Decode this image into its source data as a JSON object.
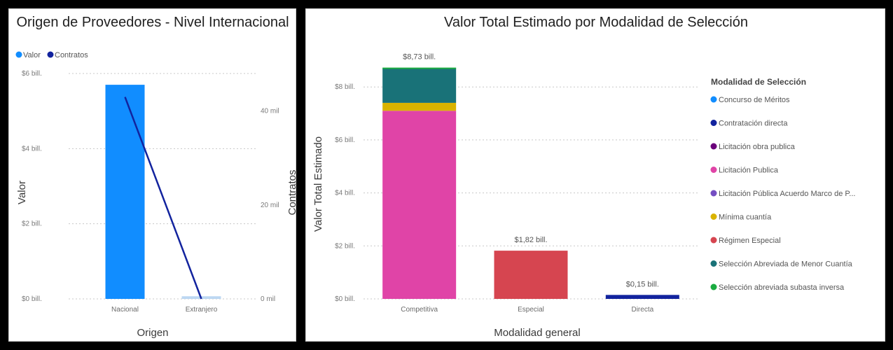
{
  "chart_data": [
    {
      "type": "bar",
      "title": "Origen de Proveedores - Nivel Internacional",
      "xlabel": "Origen",
      "ylabel": "Valor",
      "y2label": "Contratos",
      "categories": [
        "Nacional",
        "Extranjero"
      ],
      "legend": {
        "placement": "top-left",
        "items": [
          {
            "name": "Valor",
            "color": "#118dff"
          },
          {
            "name": "Contratos",
            "color": "#12239e"
          }
        ]
      },
      "series": [
        {
          "name": "Valor",
          "kind": "bar",
          "axis": "left",
          "values": [
            5.7,
            0.07
          ],
          "colors": [
            "#118dff",
            "#bcd7f2"
          ]
        },
        {
          "name": "Contratos",
          "kind": "line",
          "axis": "right",
          "values": [
            43000,
            0
          ],
          "color": "#12239e"
        }
      ],
      "ylim": [
        0,
        6
      ],
      "yticks": [
        0,
        2,
        4,
        6
      ],
      "ytick_labels": [
        "$0 bill.",
        "$2 bill.",
        "$4 bill.",
        "$6 bill."
      ],
      "y2lim": [
        0,
        48000
      ],
      "y2ticks": [
        0,
        20000,
        40000
      ],
      "y2tick_labels": [
        "0 mil",
        "20 mil",
        "40 mil"
      ],
      "grid": true
    },
    {
      "type": "bar",
      "stacked": true,
      "title": "Valor Total Estimado por Modalidad de Selección",
      "xlabel": "Modalidad general",
      "ylabel": "Valor Total Estimado",
      "categories": [
        "Competitiva",
        "Especial",
        "Directa"
      ],
      "totals": [
        8.73,
        1.82,
        0.15
      ],
      "total_labels": [
        "$8,73 bill.",
        "$1,82 bill.",
        "$0,15 bill."
      ],
      "ylim": [
        0,
        9.3
      ],
      "yticks": [
        0,
        2,
        4,
        6,
        8
      ],
      "ytick_labels": [
        "$0 bill.",
        "$2 bill.",
        "$4 bill.",
        "$6 bill.",
        "$8 bill."
      ],
      "grid": true,
      "legend": {
        "title": "Modalidad de Selección",
        "placement": "right"
      },
      "series": [
        {
          "name": "Concurso de Méritos",
          "color": "#118dff",
          "values": [
            0,
            0,
            0
          ]
        },
        {
          "name": "Contratación directa",
          "color": "#12239e",
          "values": [
            0,
            0,
            0.15
          ]
        },
        {
          "name": "Licitación obra publica",
          "color": "#6b007b",
          "values": [
            0,
            0,
            0
          ]
        },
        {
          "name": "Licitación Publica",
          "color": "#e044a7",
          "values": [
            7.1,
            0,
            0
          ]
        },
        {
          "name": "Licitación Pública Acuerdo Marco de P...",
          "color": "#744ec2",
          "values": [
            0,
            0,
            0
          ]
        },
        {
          "name": "Mínima cuantía",
          "color": "#d9b300",
          "values": [
            0.3,
            0,
            0
          ]
        },
        {
          "name": "Régimen Especial",
          "color": "#d64550",
          "values": [
            0,
            1.82,
            0
          ]
        },
        {
          "name": "Selección Abreviada de Menor Cuantía",
          "color": "#197278",
          "values": [
            1.3,
            0,
            0
          ]
        },
        {
          "name": "Selección abreviada subasta inversa",
          "color": "#1aab40",
          "values": [
            0.03,
            0,
            0
          ]
        }
      ]
    }
  ]
}
